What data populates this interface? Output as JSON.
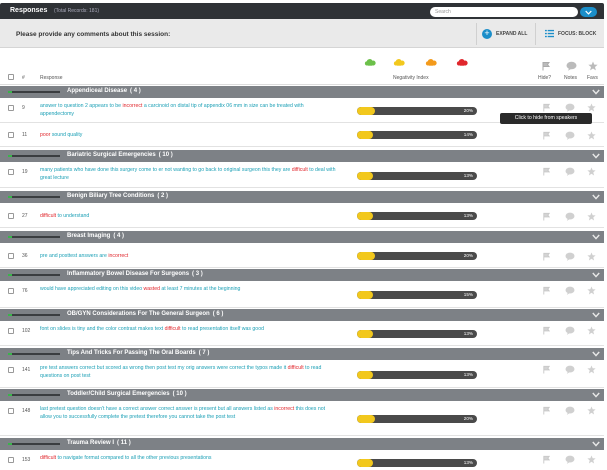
{
  "header": {
    "title": "Responses",
    "total": "(Total Records: 181)",
    "search_placeholder": "Search"
  },
  "prompt": {
    "question": "Please provide any comments about this session:",
    "expand_label": "EXPAND ALL",
    "focus_label": "FOCUS: BLOCK"
  },
  "columns": {
    "number": "#",
    "response": "Response",
    "negativity": "Negativity Index",
    "hide": "Hide?",
    "notes": "Notes",
    "favs": "Favs"
  },
  "negativity_icons": [
    {
      "name": "cloud-green-icon",
      "color": "#6cc04a"
    },
    {
      "name": "cloud-yellow-icon",
      "color": "#f2c81d"
    },
    {
      "name": "cloud-orange-icon",
      "color": "#f39a1b"
    },
    {
      "name": "cloud-red-icon",
      "color": "#e0262c"
    }
  ],
  "colors": {
    "positive_text": "#1a9fb5",
    "negative_word": "#e0262c",
    "group_bar": "#7d8186",
    "gauge_fill": "#f2c81d",
    "accent": "#1b8ec9"
  },
  "tooltip": "Click to hide from speakers",
  "groups": [
    {
      "name": "Appendiceal Disease",
      "count": "( 4 )",
      "rows": [
        {
          "id": "9",
          "negativity": 0.2,
          "pct": "20%",
          "segments": [
            {
              "t": "answer to question 2 appears to be ",
              "neg": false
            },
            {
              "t": "incorrect",
              "neg": true
            },
            {
              "t": " a carcinoid on distal tip of appendix 06 mm in size can be treated with appendectomy",
              "neg": false
            }
          ]
        },
        {
          "id": "11",
          "negativity": 0.14,
          "pct": "14%",
          "segments": [
            {
              "t": "poor",
              "neg": true
            },
            {
              "t": " sound quality",
              "neg": false
            }
          ]
        }
      ]
    },
    {
      "name": "Bariatric Surgical Emergencies",
      "count": "( 10 )",
      "rows": [
        {
          "id": "19",
          "negativity": 0.13,
          "pct": "13%",
          "segments": [
            {
              "t": "many patients who have done this surgery come to er not wanting to go back to original surgeon this they are ",
              "neg": false
            },
            {
              "t": "difficult",
              "neg": true
            },
            {
              "t": " to deal with great lecture",
              "neg": false
            }
          ]
        }
      ]
    },
    {
      "name": "Benign Biliary Tree Conditions",
      "count": "( 2 )",
      "rows": [
        {
          "id": "27",
          "negativity": 0.13,
          "pct": "13%",
          "segments": [
            {
              "t": "difficult",
              "neg": true
            },
            {
              "t": " to understand",
              "neg": false
            }
          ]
        }
      ]
    },
    {
      "name": "Breast Imaging",
      "count": "( 4 )",
      "rows": [
        {
          "id": "36",
          "negativity": 0.2,
          "pct": "20%",
          "segments": [
            {
              "t": "pre and posttest answers are ",
              "neg": false
            },
            {
              "t": "incorrect",
              "neg": true
            }
          ]
        }
      ]
    },
    {
      "name": "Inflammatory Bowel Disease For Surgeons",
      "count": "( 3 )",
      "rows": [
        {
          "id": "76",
          "negativity": 0.15,
          "pct": "15%",
          "segments": [
            {
              "t": "would have appreciated editing on this video ",
              "neg": false
            },
            {
              "t": "wasted",
              "neg": true
            },
            {
              "t": " at least 7 minutes at the beginning",
              "neg": false
            }
          ]
        }
      ]
    },
    {
      "name": "OB/GYN Considerations For The General Surgeon",
      "count": "( 6 )",
      "rows": [
        {
          "id": "102",
          "negativity": 0.13,
          "pct": "13%",
          "segments": [
            {
              "t": "font on slides is tiny and the color contrast makes text ",
              "neg": false
            },
            {
              "t": "difficult",
              "neg": true
            },
            {
              "t": " to read presentation itself was good",
              "neg": false
            }
          ]
        }
      ]
    },
    {
      "name": "Tips And Tricks For Passing The Oral Boards",
      "count": "( 7 )",
      "rows": [
        {
          "id": "141",
          "negativity": 0.13,
          "pct": "13%",
          "segments": [
            {
              "t": "pre test answers correct but scored as wrong then post test my orig answers were correct the typos made it ",
              "neg": false
            },
            {
              "t": "difficult",
              "neg": true
            },
            {
              "t": " to read questions on post test",
              "neg": false
            }
          ]
        }
      ]
    },
    {
      "name": "Toddler/Child Surgical Emergencies",
      "count": "( 10 )",
      "rows": [
        {
          "id": "148",
          "negativity": 0.2,
          "pct": "20%",
          "segments": [
            {
              "t": "last pretest question doesn't have a correct answer correct answer is present but all answers listed as ",
              "neg": false
            },
            {
              "t": "incorrect",
              "neg": true
            },
            {
              "t": " this does not allow you to successfully complete the pretest therefore you cannot take the post test",
              "neg": false
            }
          ]
        }
      ]
    },
    {
      "name": "Trauma Review I",
      "count": "( 11 )",
      "rows": [
        {
          "id": "153",
          "negativity": 0.13,
          "pct": "13%",
          "segments": [
            {
              "t": "difficult",
              "neg": true
            },
            {
              "t": " to navigate format compared to all the other previous presentations",
              "neg": false
            }
          ]
        }
      ]
    }
  ]
}
